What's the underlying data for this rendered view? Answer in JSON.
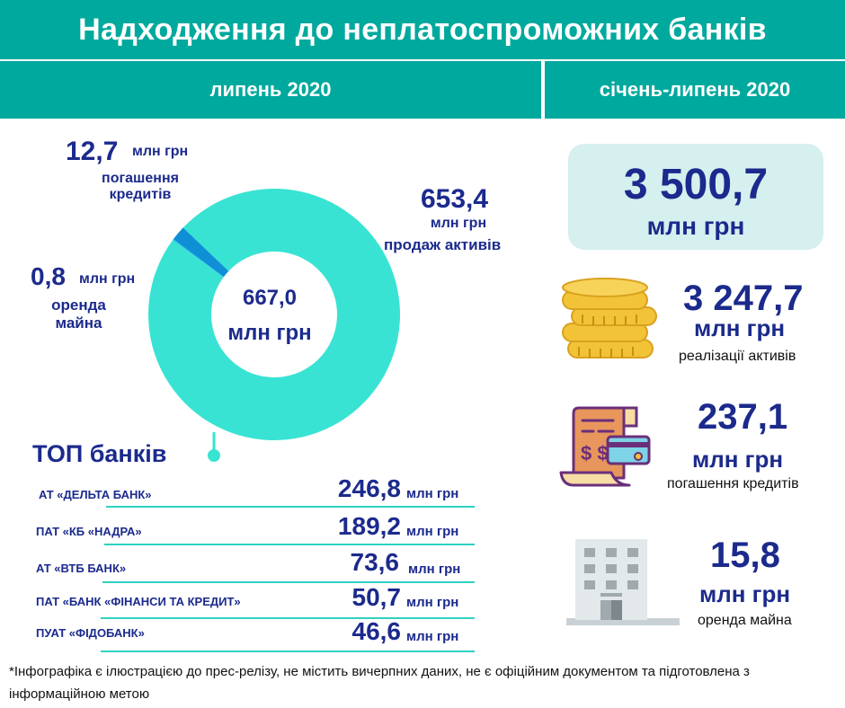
{
  "header": {
    "title": "Надходження до неплатоспроможних банків",
    "period_month": "липень 2020",
    "period_cumulative": "січень-липень 2020"
  },
  "donut": {
    "center_value": "667,0",
    "center_unit": "млн грн",
    "segments": [
      {
        "value": "653,4",
        "unit": "млн грн",
        "label": "продаж активів",
        "amount": 653.4,
        "color": "#39e3d3"
      },
      {
        "value": "12,7",
        "unit": "млн грн",
        "label": "погашення кредитів",
        "amount": 12.7,
        "color": "#0e8fd6"
      },
      {
        "value": "0,8",
        "unit": "млн грн",
        "label": "оренда майна",
        "amount": 0.8,
        "color": "#1fbbe6"
      }
    ]
  },
  "top_banks": {
    "title": "ТОП банків",
    "unit": "млн грн",
    "items": [
      {
        "name": "АТ «ДЕЛЬТА БАНК»",
        "value": "246,8"
      },
      {
        "name": "ПАТ «КБ «НАДРА»",
        "value": "189,2"
      },
      {
        "name": "АТ «ВТБ БАНК»",
        "value": "73,6"
      },
      {
        "name": "ПАТ «БАНК «ФІНАНСИ ТА КРЕДИТ»",
        "value": "50,7"
      },
      {
        "name": "ПУАТ «ФІДОБАНК»",
        "value": "46,6"
      }
    ]
  },
  "cumulative": {
    "total_value": "3 500,7",
    "total_unit": "млн грн",
    "items": [
      {
        "icon": "coins-icon",
        "value": "3 247,7",
        "unit": "млн грн",
        "label": "реалізації активів"
      },
      {
        "icon": "bill-card-icon",
        "value": "237,1",
        "unit": "млн грн",
        "label": "погашення кредитів"
      },
      {
        "icon": "building-icon",
        "value": "15,8",
        "unit": "млн грн",
        "label": "оренда майна"
      }
    ]
  },
  "footer": "*Інфографіка є ілюстрацією до прес-релізу, не містить вичерпних даних, не є офіційним документом та підготовлена з інформаційною метою",
  "colors": {
    "header": "#00a99d",
    "text": "#1b2a8c",
    "donut_main": "#39e3d3",
    "donut_secondary": "#0e8fd6"
  }
}
